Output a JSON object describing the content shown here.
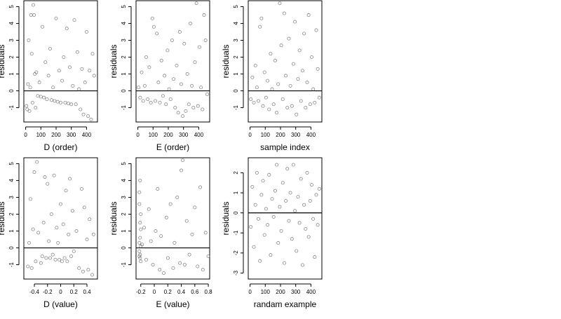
{
  "chart_data": [
    {
      "type": "scatter",
      "xlabel": "D (order)",
      "ylabel": "residuals",
      "x_ticks": [
        0,
        100,
        200,
        300,
        400
      ],
      "y_ticks": [
        -1,
        0,
        1,
        2,
        3,
        4,
        5
      ],
      "xlim": [
        -12,
        472
      ],
      "ylim": [
        -1.85,
        5.35
      ],
      "reference_line_y": 0,
      "grid": false,
      "points": [
        [
          5,
          -0.9
        ],
        [
          10,
          -1.1
        ],
        [
          15,
          0.4
        ],
        [
          20,
          3.0
        ],
        [
          25,
          -1.2
        ],
        [
          30,
          0.2
        ],
        [
          35,
          4.5
        ],
        [
          40,
          2.2
        ],
        [
          45,
          -0.7
        ],
        [
          50,
          5.1
        ],
        [
          55,
          4.5
        ],
        [
          60,
          1.0
        ],
        [
          65,
          -1.0
        ],
        [
          70,
          1.1
        ],
        [
          80,
          -0.3
        ],
        [
          90,
          0.5
        ],
        [
          100,
          -0.35
        ],
        [
          110,
          3.8
        ],
        [
          120,
          -0.4
        ],
        [
          130,
          1.7
        ],
        [
          140,
          -0.5
        ],
        [
          150,
          0.9
        ],
        [
          160,
          2.5
        ],
        [
          170,
          -0.55
        ],
        [
          180,
          0.2
        ],
        [
          190,
          -0.6
        ],
        [
          200,
          4.3
        ],
        [
          210,
          -0.65
        ],
        [
          220,
          1.2
        ],
        [
          230,
          -0.7
        ],
        [
          240,
          0.6
        ],
        [
          250,
          2.0
        ],
        [
          260,
          -0.7
        ],
        [
          270,
          3.7
        ],
        [
          280,
          -0.75
        ],
        [
          290,
          1.4
        ],
        [
          300,
          -0.8
        ],
        [
          310,
          0.3
        ],
        [
          320,
          4.2
        ],
        [
          330,
          -0.8
        ],
        [
          340,
          2.3
        ],
        [
          350,
          0.1
        ],
        [
          360,
          -1.1
        ],
        [
          370,
          1.3
        ],
        [
          380,
          -1.4
        ],
        [
          390,
          0.5
        ],
        [
          400,
          3.5
        ],
        [
          410,
          -1.5
        ],
        [
          420,
          1.2
        ],
        [
          430,
          -1.7
        ],
        [
          440,
          2.2
        ],
        [
          450,
          0.9
        ]
      ]
    },
    {
      "type": "scatter",
      "xlabel": "E (order)",
      "ylabel": "residuals",
      "x_ticks": [
        0,
        100,
        200,
        300,
        400
      ],
      "y_ticks": [
        -1,
        0,
        1,
        2,
        3,
        4,
        5
      ],
      "xlim": [
        -12,
        472
      ],
      "ylim": [
        -1.85,
        5.35
      ],
      "reference_line_y": 0,
      "grid": false,
      "points": [
        [
          5,
          0.2
        ],
        [
          15,
          -0.4
        ],
        [
          25,
          1.1
        ],
        [
          35,
          -0.6
        ],
        [
          45,
          0.3
        ],
        [
          55,
          2.0
        ],
        [
          65,
          -0.5
        ],
        [
          75,
          1.4
        ],
        [
          85,
          -0.7
        ],
        [
          95,
          4.3
        ],
        [
          105,
          3.8
        ],
        [
          115,
          -0.6
        ],
        [
          125,
          3.4
        ],
        [
          135,
          0.5
        ],
        [
          145,
          -0.7
        ],
        [
          155,
          1.8
        ],
        [
          165,
          -0.3
        ],
        [
          175,
          0.9
        ],
        [
          185,
          -0.8
        ],
        [
          195,
          2.4
        ],
        [
          205,
          0.1
        ],
        [
          215,
          -0.5
        ],
        [
          225,
          3.0
        ],
        [
          235,
          0.7
        ],
        [
          245,
          -1.0
        ],
        [
          255,
          1.5
        ],
        [
          265,
          -1.3
        ],
        [
          275,
          3.5
        ],
        [
          285,
          0.4
        ],
        [
          295,
          -1.5
        ],
        [
          305,
          2.8
        ],
        [
          315,
          -1.2
        ],
        [
          325,
          1.0
        ],
        [
          335,
          -0.8
        ],
        [
          345,
          4.0
        ],
        [
          355,
          0.3
        ],
        [
          365,
          -1.0
        ],
        [
          375,
          1.7
        ],
        [
          385,
          5.2
        ],
        [
          395,
          -0.9
        ],
        [
          405,
          2.6
        ],
        [
          415,
          0.2
        ],
        [
          425,
          -1.1
        ],
        [
          435,
          4.5
        ],
        [
          445,
          3.0
        ],
        [
          455,
          -0.2
        ]
      ]
    },
    {
      "type": "scatter",
      "xlabel": "sample index",
      "ylabel": "residuals",
      "x_ticks": [
        0,
        100,
        200,
        300,
        400
      ],
      "y_ticks": [
        -1,
        0,
        1,
        2,
        3,
        4,
        5
      ],
      "xlim": [
        -12,
        472
      ],
      "ylim": [
        -1.85,
        5.35
      ],
      "reference_line_y": 0,
      "grid": false,
      "points": [
        [
          5,
          -0.5
        ],
        [
          15,
          0.8
        ],
        [
          25,
          -0.7
        ],
        [
          35,
          1.5
        ],
        [
          45,
          0.2
        ],
        [
          55,
          -0.6
        ],
        [
          65,
          3.8
        ],
        [
          75,
          4.3
        ],
        [
          85,
          -0.9
        ],
        [
          95,
          1.1
        ],
        [
          105,
          -0.4
        ],
        [
          115,
          0.6
        ],
        [
          125,
          -1.1
        ],
        [
          135,
          2.2
        ],
        [
          145,
          0.1
        ],
        [
          155,
          -0.8
        ],
        [
          165,
          1.8
        ],
        [
          175,
          -1.3
        ],
        [
          185,
          0.4
        ],
        [
          195,
          5.2
        ],
        [
          205,
          2.7
        ],
        [
          215,
          -0.5
        ],
        [
          225,
          4.6
        ],
        [
          235,
          0.9
        ],
        [
          245,
          -1.0
        ],
        [
          255,
          3.1
        ],
        [
          265,
          0.3
        ],
        [
          275,
          -0.9
        ],
        [
          285,
          1.6
        ],
        [
          295,
          4.1
        ],
        [
          305,
          -1.4
        ],
        [
          315,
          0.7
        ],
        [
          325,
          2.4
        ],
        [
          335,
          -0.6
        ],
        [
          345,
          1.2
        ],
        [
          355,
          3.4
        ],
        [
          365,
          -1.0
        ],
        [
          375,
          0.5
        ],
        [
          385,
          4.5
        ],
        [
          395,
          -0.8
        ],
        [
          405,
          2.0
        ],
        [
          415,
          0.1
        ],
        [
          425,
          -0.7
        ],
        [
          435,
          3.6
        ],
        [
          445,
          1.3
        ],
        [
          455,
          -0.4
        ]
      ]
    },
    {
      "type": "scatter",
      "xlabel": "D (value)",
      "ylabel": "residuals",
      "x_ticks": [
        -0.4,
        -0.2,
        0.0,
        0.2,
        0.4
      ],
      "y_ticks": [
        -1,
        0,
        1,
        2,
        3,
        4,
        5
      ],
      "xlim": [
        -0.56,
        0.56
      ],
      "ylim": [
        -1.85,
        5.35
      ],
      "reference_line_y": 0,
      "grid": false,
      "points": [
        [
          -0.5,
          -1.1
        ],
        [
          -0.48,
          0.3
        ],
        [
          -0.46,
          2.9
        ],
        [
          -0.44,
          -1.2
        ],
        [
          -0.42,
          1.1
        ],
        [
          -0.4,
          4.5
        ],
        [
          -0.38,
          -0.8
        ],
        [
          -0.36,
          5.1
        ],
        [
          -0.34,
          0.9
        ],
        [
          -0.3,
          -0.9
        ],
        [
          -0.28,
          -0.5
        ],
        [
          -0.26,
          1.5
        ],
        [
          -0.24,
          4.2
        ],
        [
          -0.22,
          -0.6
        ],
        [
          -0.2,
          3.8
        ],
        [
          -0.18,
          0.4
        ],
        [
          -0.16,
          -0.6
        ],
        [
          -0.14,
          2.0
        ],
        [
          -0.12,
          -0.4
        ],
        [
          -0.1,
          4.3
        ],
        [
          -0.08,
          -0.7
        ],
        [
          -0.06,
          1.2
        ],
        [
          -0.04,
          0.3
        ],
        [
          -0.02,
          -0.7
        ],
        [
          0.0,
          2.6
        ],
        [
          0.02,
          -0.8
        ],
        [
          0.04,
          1.4
        ],
        [
          0.06,
          -0.6
        ],
        [
          0.08,
          3.4
        ],
        [
          0.1,
          -0.8
        ],
        [
          0.12,
          0.8
        ],
        [
          0.14,
          4.1
        ],
        [
          0.16,
          -0.5
        ],
        [
          0.18,
          2.2
        ],
        [
          0.2,
          -0.2
        ],
        [
          0.24,
          1.0
        ],
        [
          0.28,
          -1.2
        ],
        [
          0.32,
          3.5
        ],
        [
          0.34,
          -1.4
        ],
        [
          0.36,
          2.4
        ],
        [
          0.4,
          0.5
        ],
        [
          0.42,
          -1.3
        ],
        [
          0.44,
          1.7
        ],
        [
          0.48,
          -1.6
        ],
        [
          0.5,
          0.8
        ]
      ]
    },
    {
      "type": "scatter",
      "xlabel": "E (value)",
      "ylabel": "residuals",
      "x_ticks": [
        -0.2,
        0.0,
        0.2,
        0.4,
        0.6,
        0.8
      ],
      "y_ticks": [
        -1,
        0,
        1,
        2,
        3,
        4,
        5
      ],
      "xlim": [
        -0.27,
        0.82
      ],
      "ylim": [
        -1.85,
        5.35
      ],
      "reference_line_y": 0,
      "grid": false,
      "points": [
        [
          -0.22,
          0.3
        ],
        [
          -0.21,
          -0.6
        ],
        [
          -0.2,
          1.1
        ],
        [
          -0.22,
          -0.2
        ],
        [
          -0.2,
          2.0
        ],
        [
          -0.21,
          4.0
        ],
        [
          -0.22,
          3.3
        ],
        [
          -0.2,
          -0.8
        ],
        [
          -0.21,
          0.6
        ],
        [
          -0.22,
          -0.5
        ],
        [
          -0.21,
          1.5
        ],
        [
          -0.2,
          0.1
        ],
        [
          -0.22,
          2.6
        ],
        [
          -0.21,
          -0.4
        ],
        [
          -0.18,
          0.2
        ],
        [
          -0.15,
          1.2
        ],
        [
          -0.12,
          -0.7
        ],
        [
          -0.08,
          2.3
        ],
        [
          -0.05,
          0.4
        ],
        [
          -0.02,
          -1.0
        ],
        [
          0.02,
          1.0
        ],
        [
          0.05,
          3.5
        ],
        [
          0.08,
          -1.3
        ],
        [
          0.1,
          0.7
        ],
        [
          0.14,
          -1.5
        ],
        [
          0.18,
          1.8
        ],
        [
          0.2,
          -0.6
        ],
        [
          0.24,
          2.6
        ],
        [
          0.28,
          -1.2
        ],
        [
          0.3,
          0.3
        ],
        [
          0.34,
          3.0
        ],
        [
          0.38,
          -0.9
        ],
        [
          0.4,
          4.6
        ],
        [
          0.42,
          5.2
        ],
        [
          0.45,
          -1.0
        ],
        [
          0.48,
          1.6
        ],
        [
          0.52,
          -0.4
        ],
        [
          0.56,
          0.8
        ],
        [
          0.6,
          2.4
        ],
        [
          0.64,
          -1.1
        ],
        [
          0.68,
          3.6
        ],
        [
          0.72,
          -1.3
        ],
        [
          0.76,
          0.9
        ],
        [
          0.8,
          -0.5
        ]
      ]
    },
    {
      "type": "scatter",
      "xlabel": "randam example",
      "ylabel": "residuals",
      "x_ticks": [
        0,
        100,
        200,
        300,
        400
      ],
      "y_ticks": [
        -3,
        -2,
        -1,
        0,
        1,
        2
      ],
      "xlim": [
        -12,
        472
      ],
      "ylim": [
        -3.3,
        2.75
      ],
      "reference_line_y": 0,
      "grid": false,
      "points": [
        [
          5,
          -0.7
        ],
        [
          15,
          1.3
        ],
        [
          25,
          -1.7
        ],
        [
          35,
          0.4
        ],
        [
          45,
          2.0
        ],
        [
          55,
          -0.3
        ],
        [
          65,
          -2.4
        ],
        [
          75,
          0.9
        ],
        [
          85,
          1.6
        ],
        [
          95,
          -1.1
        ],
        [
          105,
          0.2
        ],
        [
          115,
          -0.6
        ],
        [
          125,
          1.9
        ],
        [
          135,
          -2.1
        ],
        [
          145,
          0.7
        ],
        [
          155,
          -0.2
        ],
        [
          165,
          1.1
        ],
        [
          175,
          2.4
        ],
        [
          185,
          -1.5
        ],
        [
          195,
          0.3
        ],
        [
          205,
          -0.9
        ],
        [
          215,
          1.5
        ],
        [
          225,
          -2.5
        ],
        [
          235,
          0.6
        ],
        [
          245,
          2.2
        ],
        [
          255,
          -0.4
        ],
        [
          265,
          1.0
        ],
        [
          275,
          -1.3
        ],
        [
          285,
          2.4
        ],
        [
          295,
          0.1
        ],
        [
          305,
          -1.9
        ],
        [
          315,
          0.8
        ],
        [
          325,
          -0.5
        ],
        [
          335,
          1.7
        ],
        [
          345,
          -2.6
        ],
        [
          355,
          0.4
        ],
        [
          365,
          -0.8
        ],
        [
          375,
          2.0
        ],
        [
          385,
          -1.2
        ],
        [
          395,
          0.6
        ],
        [
          405,
          1.4
        ],
        [
          415,
          -0.3
        ],
        [
          425,
          -2.2
        ],
        [
          435,
          0.9
        ],
        [
          445,
          -0.6
        ],
        [
          455,
          1.2
        ]
      ]
    }
  ]
}
